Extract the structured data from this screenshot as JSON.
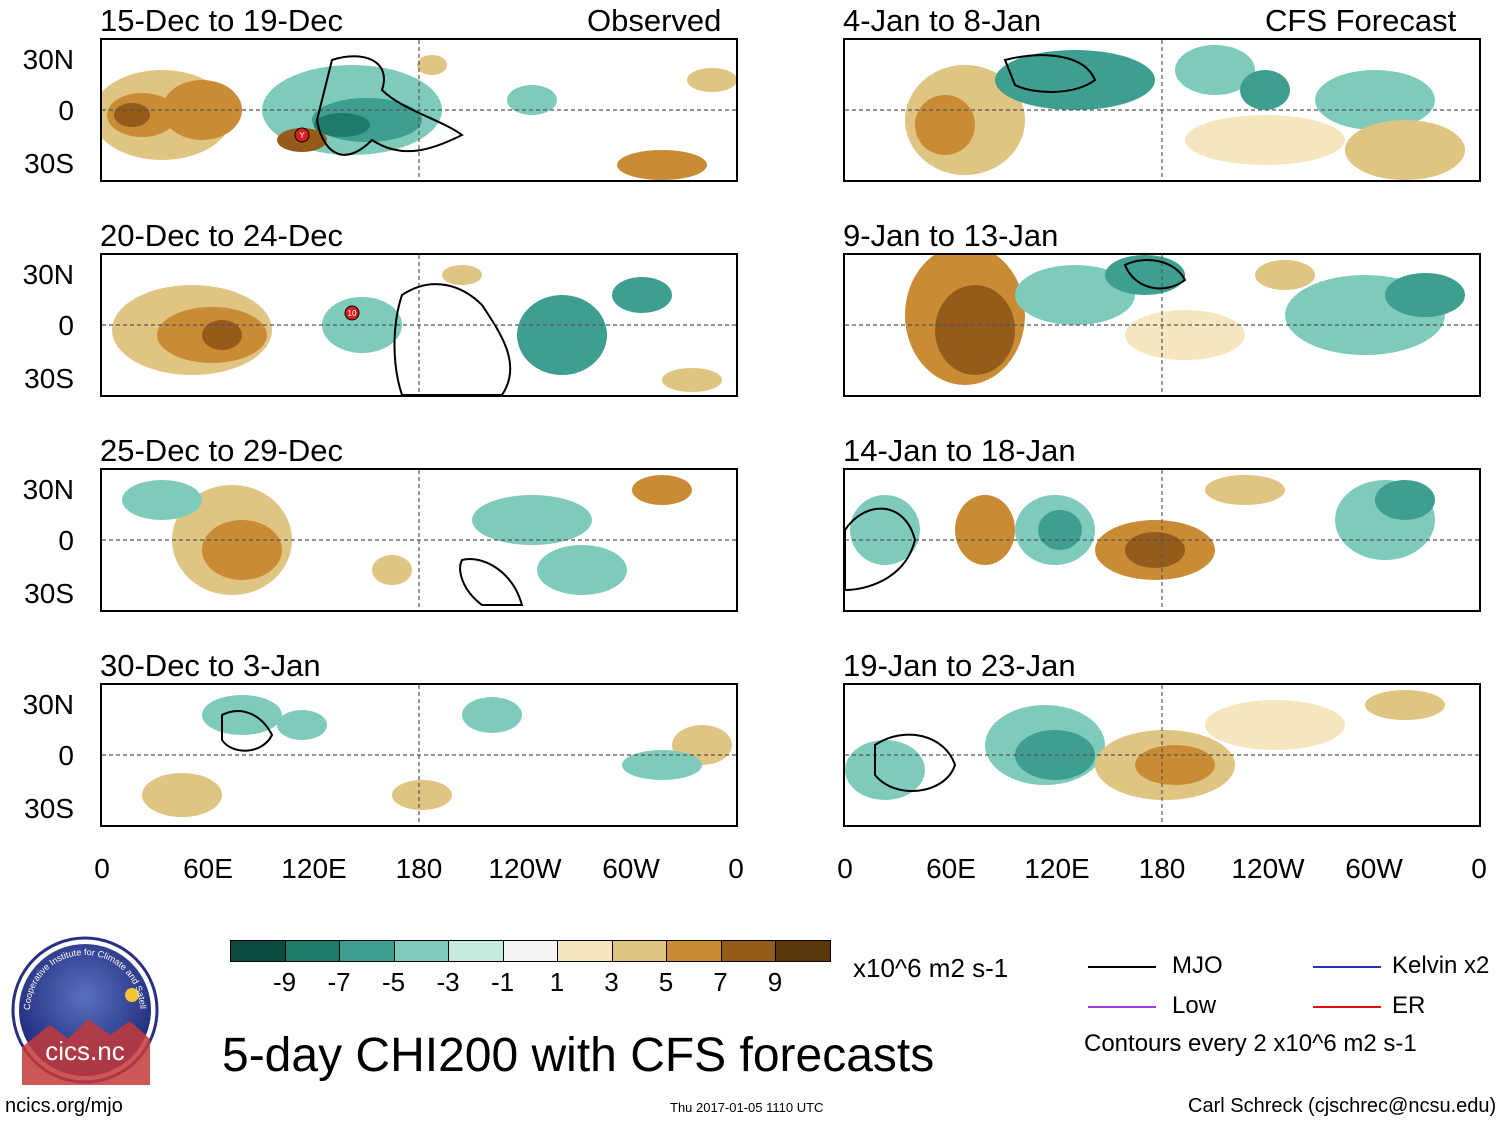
{
  "panels": [
    {
      "id": "p1",
      "title": "15-Dec to 19-Dec",
      "right_title": "Observed",
      "lat_labels": [
        "30N",
        "0",
        "30S"
      ]
    },
    {
      "id": "p2",
      "title": "20-Dec to 24-Dec",
      "right_title": "",
      "lat_labels": [
        "30N",
        "0",
        "30S"
      ]
    },
    {
      "id": "p3",
      "title": "25-Dec to 29-Dec",
      "right_title": "",
      "lat_labels": [
        "30N",
        "0",
        "30S"
      ]
    },
    {
      "id": "p4",
      "title": "30-Dec to 3-Jan",
      "right_title": "",
      "lat_labels": [
        "30N",
        "0",
        "30S"
      ]
    },
    {
      "id": "p5",
      "title": "4-Jan to 8-Jan",
      "right_title": "CFS Forecast"
    },
    {
      "id": "p6",
      "title": "9-Jan to 13-Jan",
      "right_title": ""
    },
    {
      "id": "p7",
      "title": "14-Jan to 18-Jan",
      "right_title": ""
    },
    {
      "id": "p8",
      "title": "19-Jan to 23-Jan",
      "right_title": ""
    }
  ],
  "lon_labels": [
    "0",
    "60E",
    "120E",
    "180",
    "120W",
    "60W",
    "0"
  ],
  "storm_markers": [
    {
      "panel": "p1",
      "label": "Y"
    },
    {
      "panel": "p2",
      "label": "10"
    }
  ],
  "colorbar": {
    "colors": [
      "#0b4a3f",
      "#1f7a6a",
      "#3e9e8f",
      "#7fcbbb",
      "#c5e8df",
      "#f5f5f5",
      "#f5e6c0",
      "#e0c482",
      "#c98c35",
      "#945b1a",
      "#5a370c"
    ],
    "labels": [
      "-9",
      "-7",
      "-5",
      "-3",
      "-1",
      "1",
      "3",
      "5",
      "7",
      "9"
    ],
    "units": "x10^6 m2 s-1"
  },
  "legend": {
    "items": [
      {
        "label": "MJO",
        "color": "#000000"
      },
      {
        "label": "Kelvin x2",
        "color": "#2233cc"
      },
      {
        "label": "Low",
        "color": "#a040e0"
      },
      {
        "label": "ER",
        "color": "#dd1111"
      }
    ],
    "note": "Contours every 2 x10^6 m2 s-1"
  },
  "main_title": "5-day CHI200 with CFS forecasts",
  "logo_text": "cics.nc",
  "logo_ring_text": "Cooperative Institute for Climate and Satellites",
  "footer": {
    "left": "ncics.org/mjo",
    "center": "Thu 2017-01-05 1110 UTC",
    "right": "Carl Schreck (cjschrec@ncsu.edu)"
  }
}
